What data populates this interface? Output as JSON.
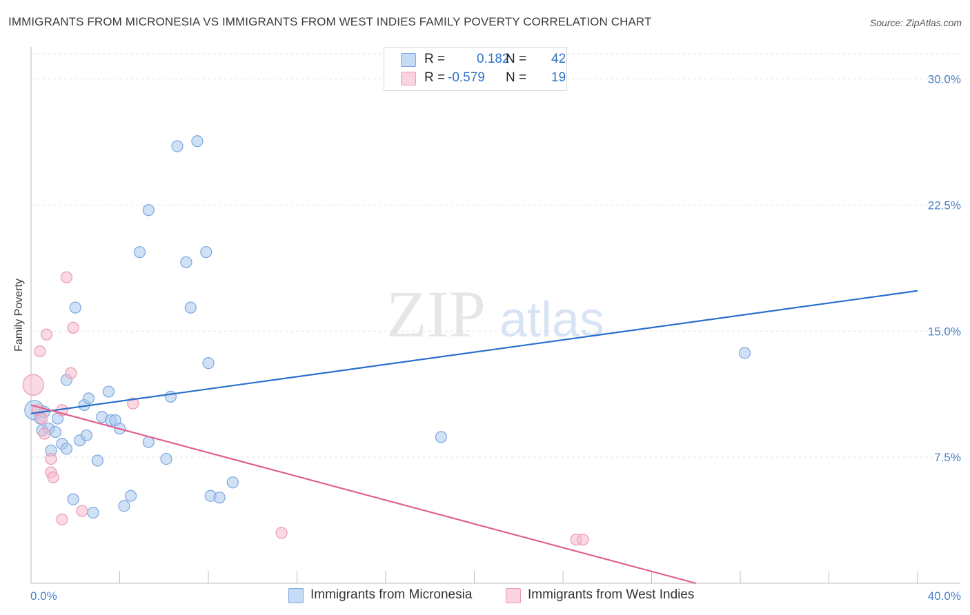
{
  "title": "IMMIGRANTS FROM MICRONESIA VS IMMIGRANTS FROM WEST INDIES FAMILY POVERTY CORRELATION CHART",
  "source": "Source: ZipAtlas.com",
  "watermark": {
    "zip": "ZIP",
    "atlas": "atlas"
  },
  "colors": {
    "blue_fill": "#a9c8ef",
    "blue_stroke": "#7aa7df",
    "blue_line": "#2a6fcc",
    "pink_fill": "#f5b9cb",
    "pink_stroke": "#ec98b2",
    "pink_line": "#e0608c",
    "tick_label": "#4b7fcc",
    "grid": "#e3e3e3"
  },
  "legend": {
    "rows": [
      {
        "r_label": "R =",
        "r_value": "0.182",
        "n_label": "N =",
        "n_value": "42"
      },
      {
        "r_label": "R =",
        "r_value": "-0.579",
        "n_label": "N =",
        "n_value": "19"
      }
    ]
  },
  "chart_data": {
    "type": "scatter",
    "title": "IMMIGRANTS FROM MICRONESIA VS IMMIGRANTS FROM WEST INDIES FAMILY POVERTY CORRELATION CHART",
    "xlabel": "",
    "ylabel": "Family Poverty",
    "xlim": [
      0,
      40
    ],
    "ylim": [
      0,
      31.5
    ],
    "x_tick_labels": [
      "0.0%",
      "40.0%"
    ],
    "y_ticks": [
      7.5,
      15.0,
      22.5,
      30.0
    ],
    "y_tick_labels": [
      "7.5%",
      "15.0%",
      "22.5%",
      "30.0%"
    ],
    "grid": true,
    "legend_position": "top-center",
    "series": [
      {
        "name": "Immigrants from Micronesia",
        "color": "#a9c8ef",
        "points": [
          [
            0.15,
            10.3,
            14
          ],
          [
            0.4,
            9.8,
            8
          ],
          [
            0.5,
            9.1,
            8
          ],
          [
            0.6,
            10.2,
            8
          ],
          [
            0.8,
            9.2,
            8
          ],
          [
            0.9,
            7.9,
            8
          ],
          [
            1.1,
            9.0,
            8
          ],
          [
            1.2,
            9.8,
            8
          ],
          [
            1.4,
            8.3,
            8
          ],
          [
            1.6,
            8.0,
            8
          ],
          [
            1.6,
            12.1,
            8
          ],
          [
            1.9,
            5.0,
            8
          ],
          [
            2.0,
            16.4,
            8
          ],
          [
            2.2,
            8.5,
            8
          ],
          [
            2.4,
            10.6,
            8
          ],
          [
            2.5,
            8.8,
            8
          ],
          [
            2.6,
            11.0,
            8
          ],
          [
            2.8,
            4.2,
            8
          ],
          [
            3.0,
            7.3,
            8
          ],
          [
            3.2,
            9.9,
            8
          ],
          [
            3.5,
            11.4,
            8
          ],
          [
            3.6,
            9.7,
            8
          ],
          [
            3.8,
            9.7,
            8
          ],
          [
            4.0,
            9.2,
            8
          ],
          [
            4.2,
            4.6,
            8
          ],
          [
            4.5,
            5.2,
            8
          ],
          [
            4.9,
            19.7,
            8
          ],
          [
            5.3,
            22.2,
            8
          ],
          [
            5.3,
            8.4,
            8
          ],
          [
            6.1,
            7.4,
            8
          ],
          [
            6.3,
            11.1,
            8
          ],
          [
            6.6,
            26.0,
            8
          ],
          [
            7.0,
            19.1,
            8
          ],
          [
            7.2,
            16.4,
            8
          ],
          [
            7.5,
            26.3,
            8
          ],
          [
            7.9,
            19.7,
            8
          ],
          [
            8.0,
            13.1,
            8
          ],
          [
            8.1,
            5.2,
            8
          ],
          [
            8.5,
            5.1,
            8
          ],
          [
            9.1,
            6.0,
            8
          ],
          [
            18.5,
            8.7,
            8
          ],
          [
            32.2,
            13.7,
            8
          ]
        ],
        "trendline": {
          "x": [
            0,
            40
          ],
          "y": [
            10.1,
            17.4
          ]
        }
      },
      {
        "name": "Immigrants from West Indies",
        "color": "#f5b9cb",
        "points": [
          [
            0.1,
            11.8,
            15
          ],
          [
            0.3,
            10.3,
            8
          ],
          [
            0.4,
            13.8,
            8
          ],
          [
            0.5,
            9.8,
            8
          ],
          [
            0.6,
            8.9,
            8
          ],
          [
            0.7,
            14.8,
            8
          ],
          [
            0.9,
            7.4,
            8
          ],
          [
            0.9,
            6.6,
            8
          ],
          [
            1.0,
            6.3,
            8
          ],
          [
            1.4,
            10.3,
            8
          ],
          [
            1.4,
            3.8,
            8
          ],
          [
            1.6,
            18.2,
            8
          ],
          [
            1.8,
            12.5,
            8
          ],
          [
            1.9,
            15.2,
            8
          ],
          [
            2.3,
            4.3,
            8
          ],
          [
            4.6,
            10.7,
            8
          ],
          [
            11.3,
            3.0,
            8
          ],
          [
            24.6,
            2.6,
            8
          ],
          [
            24.9,
            2.6,
            8
          ]
        ],
        "trendline": {
          "x": [
            0,
            30
          ],
          "y": [
            10.6,
            0.0
          ]
        }
      }
    ]
  }
}
